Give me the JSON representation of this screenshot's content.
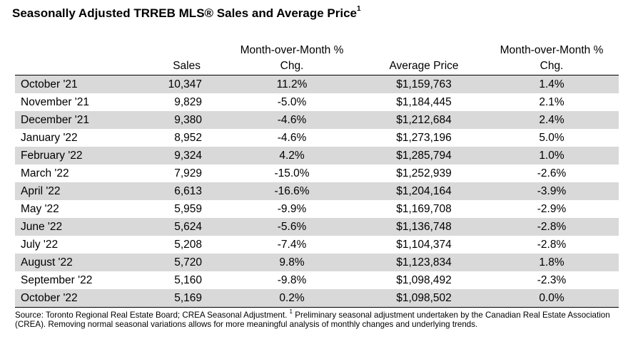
{
  "title": {
    "text": "Seasonally Adjusted TRREB MLS® Sales and Average Price",
    "footnote_mark": "1"
  },
  "table": {
    "headers": {
      "month": "",
      "sales": "Sales",
      "sales_mom_line1": "Month-over-Month %",
      "sales_mom_line2": "Chg.",
      "avg_price": "Average Price",
      "price_mom_line1": "Month-over-Month %",
      "price_mom_line2": "Chg."
    },
    "rows": [
      {
        "month": "October '21",
        "sales": "10,347",
        "sales_chg": "11.2%",
        "avg_price": "$1,159,763",
        "price_chg": "1.4%"
      },
      {
        "month": "November '21",
        "sales": "9,829",
        "sales_chg": "-5.0%",
        "avg_price": "$1,184,445",
        "price_chg": "2.1%"
      },
      {
        "month": "December '21",
        "sales": "9,380",
        "sales_chg": "-4.6%",
        "avg_price": "$1,212,684",
        "price_chg": "2.4%"
      },
      {
        "month": "January '22",
        "sales": "8,952",
        "sales_chg": "-4.6%",
        "avg_price": "$1,273,196",
        "price_chg": "5.0%"
      },
      {
        "month": "February '22",
        "sales": "9,324",
        "sales_chg": "4.2%",
        "avg_price": "$1,285,794",
        "price_chg": "1.0%"
      },
      {
        "month": "March '22",
        "sales": "7,929",
        "sales_chg": "-15.0%",
        "avg_price": "$1,252,939",
        "price_chg": "-2.6%"
      },
      {
        "month": "April '22",
        "sales": "6,613",
        "sales_chg": "-16.6%",
        "avg_price": "$1,204,164",
        "price_chg": "-3.9%"
      },
      {
        "month": "May '22",
        "sales": "5,959",
        "sales_chg": "-9.9%",
        "avg_price": "$1,169,708",
        "price_chg": "-2.9%"
      },
      {
        "month": "June '22",
        "sales": "5,624",
        "sales_chg": "-5.6%",
        "avg_price": "$1,136,748",
        "price_chg": "-2.8%"
      },
      {
        "month": "July '22",
        "sales": "5,208",
        "sales_chg": "-7.4%",
        "avg_price": "$1,104,374",
        "price_chg": "-2.8%"
      },
      {
        "month": "August '22",
        "sales": "5,720",
        "sales_chg": "9.8%",
        "avg_price": "$1,123,834",
        "price_chg": "1.8%"
      },
      {
        "month": "September '22",
        "sales": "5,160",
        "sales_chg": "-9.8%",
        "avg_price": "$1,098,492",
        "price_chg": "-2.3%"
      },
      {
        "month": "October '22",
        "sales": "5,169",
        "sales_chg": "0.2%",
        "avg_price": "$1,098,502",
        "price_chg": "0.0%"
      }
    ],
    "shading": {
      "odd_row_color": "#d9d9d9"
    }
  },
  "source": {
    "part1": "Source: Toronto Regional Real Estate Board; CREA Seasonal Adjustment. ",
    "footnote_mark": "1",
    "part2": " Preliminary seasonal adjustment undertaken by the Canadian Real Estate Association (CREA).  Removing normal seasonal variations allows for more meaningful analysis of monthly changes and underlying trends."
  }
}
